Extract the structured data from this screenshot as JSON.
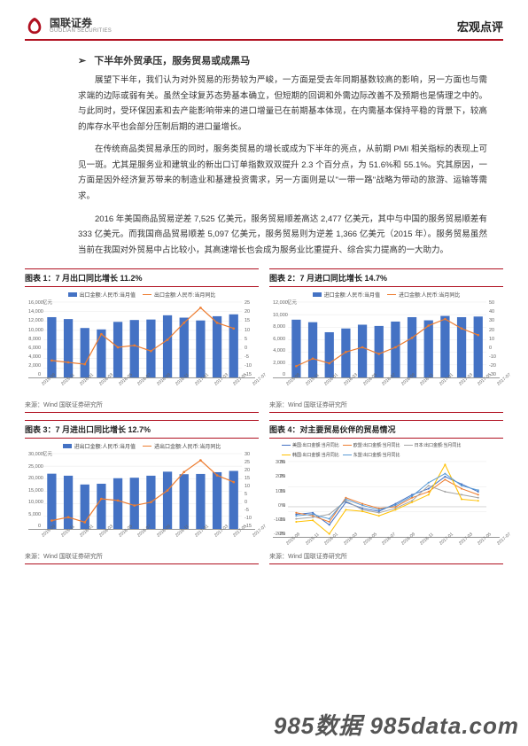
{
  "header": {
    "company_cn": "国联证券",
    "company_en": "GUOLIAN SECURITIES",
    "doc_type": "宏观点评",
    "logo_color": "#b01020"
  },
  "section_title": "下半年外贸承压，服务贸易或成黑马",
  "paragraphs": [
    "展望下半年，我们认为对外贸易的形势较为严峻，一方面是受去年同期基数较高的影响，另一方面也与需求端的边际或弱有关。虽然全球复苏态势基本确立，但短期的回调和外需边际改善不及预期也是情理之中的。与此同时，受环保因素和去产能影响带来的进口增量已在前期基本体现，在内需基本保持平稳的背景下，较高的库存水平也会部分压制后期的进口量增长。",
    "在传统商品类贸易承压的同时，服务类贸易的增长或成为下半年的亮点，从前期 PMI 相关指标的表现上可见一斑。尤其是服务业和建筑业的新出口订单指数双双提升 2.3 个百分点，为 51.6%和 55.1%。究其原因，一方面是因外经济复苏带来的制造业和基建投资需求，另一方面则是以\"一带一路\"战略为带动的旅游、运输等需求。",
    "2016 年美国商品贸易逆差 7,525 亿美元，服务贸易顺差高达 2,477 亿美元，其中与中国的服务贸易顺差有 333 亿美元。而我国商品贸易顺差 5,097 亿美元，服务贸易则为逆差 1,366 亿美元（2015 年）。服务贸易虽然当前在我国对外贸易中占比较小，其高速增长也会成为服务业比重提升、综合实力提高的一大助力。"
  ],
  "charts": [
    {
      "title": "图表 1：7 月出口同比增长 11.2%",
      "type": "bar+line",
      "unit": "亿元",
      "bar_label": "出口金额:人民币:当月值",
      "line_label": "出口金额:人民币:当月同比",
      "bar_color": "#4472c4",
      "line_color": "#ed7d31",
      "x": [
        "2015-09",
        "2015-11",
        "2016-01",
        "2016-03",
        "2016-05",
        "2016-07",
        "2016-09",
        "2016-11",
        "2017-01",
        "2017-03",
        "2017-05",
        "2017-07"
      ],
      "bars": [
        12800,
        12400,
        10500,
        10200,
        11800,
        12200,
        12300,
        13200,
        12700,
        12100,
        13000,
        13400
      ],
      "line": [
        -6,
        -7,
        -8,
        8,
        1,
        2,
        -1,
        5,
        14,
        22,
        14,
        11
      ],
      "yl": [
        0,
        2000,
        4000,
        6000,
        8000,
        10000,
        12000,
        14000,
        16000
      ],
      "yr": [
        -15,
        -10,
        -5,
        0,
        5,
        10,
        15,
        20,
        25
      ],
      "yl_max": 16000,
      "yr_min": -15,
      "yr_max": 25
    },
    {
      "title": "图表 2：7 月进口同比增长 14.7%",
      "type": "bar+line",
      "unit": "亿元",
      "bar_label": "进口金额:人民币:当月值",
      "line_label": "进口金额:人民币:当月同比",
      "bar_color": "#4472c4",
      "line_color": "#ed7d31",
      "x": [
        "2015-09",
        "2015-11",
        "2016-01",
        "2016-03",
        "2016-05",
        "2016-07",
        "2016-09",
        "2016-11",
        "2017-01",
        "2017-03",
        "2017-05",
        "2017-07"
      ],
      "bars": [
        9200,
        8800,
        7200,
        7800,
        8400,
        8200,
        8900,
        9600,
        9100,
        9800,
        9600,
        9700
      ],
      "line": [
        -18,
        -10,
        -15,
        -3,
        2,
        -5,
        2,
        12,
        25,
        32,
        22,
        15
      ],
      "yl": [
        0,
        2000,
        4000,
        6000,
        8000,
        10000,
        12000
      ],
      "yr": [
        -30,
        -20,
        -10,
        0,
        10,
        20,
        30,
        40,
        50
      ],
      "yl_max": 12000,
      "yr_min": -30,
      "yr_max": 50
    },
    {
      "title": "图表 3：7 月进出口同比增长 12.7%",
      "type": "bar+line",
      "unit": "亿元",
      "bar_label": "进出口金额:人民币:当月值",
      "line_label": "进出口金额:人民币:当月同比",
      "bar_color": "#4472c4",
      "line_color": "#ed7d31",
      "x": [
        "2015-09",
        "2015-11",
        "2016-01",
        "2016-03",
        "2016-05",
        "2016-07",
        "2016-09",
        "2016-11",
        "2017-01",
        "2017-03",
        "2017-05",
        "2017-07"
      ],
      "bars": [
        22000,
        21200,
        17700,
        18000,
        20200,
        20400,
        21200,
        22800,
        21800,
        21900,
        22600,
        23100
      ],
      "line": [
        -10,
        -8,
        -11,
        3,
        2,
        -1,
        1,
        8,
        19,
        26,
        17,
        13
      ],
      "yl": [
        0,
        5000,
        10000,
        15000,
        20000,
        25000,
        30000
      ],
      "yr": [
        -15,
        -10,
        -5,
        0,
        5,
        10,
        15,
        20,
        25,
        30
      ],
      "yl_max": 30000,
      "yr_min": -15,
      "yr_max": 30
    },
    {
      "title": "图表 4：对主要贸易伙伴的贸易情况",
      "type": "multiline",
      "series": [
        {
          "label": "美国:出口金额:当月同比",
          "color": "#4472c4",
          "vals": [
            -5,
            -4,
            -12,
            3,
            -1,
            -3,
            2,
            8,
            12,
            20,
            15,
            10
          ]
        },
        {
          "label": "欧盟:出口金额:当月同比",
          "color": "#ed7d31",
          "vals": [
            -4,
            -6,
            -10,
            6,
            2,
            -1,
            0,
            6,
            10,
            18,
            12,
            8
          ]
        },
        {
          "label": "日本:出口金额:当月同比",
          "color": "#a5a5a5",
          "vals": [
            -8,
            -7,
            -5,
            4,
            -2,
            -4,
            -1,
            4,
            14,
            10,
            8,
            6
          ]
        },
        {
          "label": "韩国:出口金额:当月同比",
          "color": "#ffc000",
          "vals": [
            -10,
            -9,
            -18,
            -2,
            -3,
            -6,
            -2,
            3,
            8,
            28,
            5,
            4
          ]
        },
        {
          "label": "东盟:出口金额:当月同比",
          "color": "#5b9bd5",
          "vals": [
            -6,
            -5,
            -8,
            5,
            1,
            -2,
            1,
            7,
            16,
            22,
            14,
            11
          ]
        }
      ],
      "x": [
        "2015-09",
        "2015-11",
        "2016-01",
        "2016-03",
        "2016-05",
        "2016-07",
        "2016-09",
        "2016-11",
        "2017-01",
        "2017-03",
        "2017-05",
        "2017-07"
      ],
      "yl": [
        -20,
        -10,
        0,
        10,
        20,
        30
      ],
      "yr_min": -20,
      "yr_max": 30
    }
  ],
  "source_label": "来源：Wind 国联证券研究所",
  "watermark": "985数据 985data.com"
}
